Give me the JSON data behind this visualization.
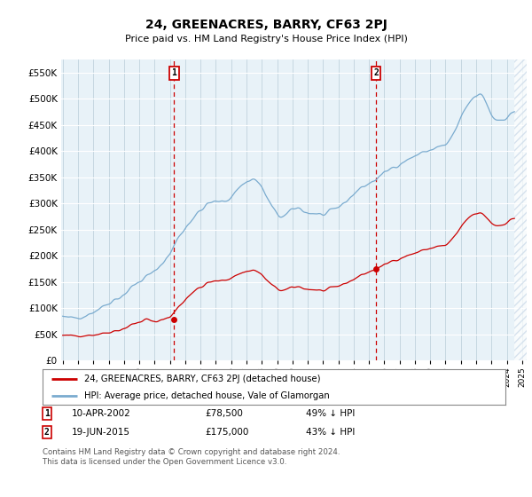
{
  "title": "24, GREENACRES, BARRY, CF63 2PJ",
  "subtitle": "Price paid vs. HM Land Registry's House Price Index (HPI)",
  "legend_line1": "24, GREENACRES, BARRY, CF63 2PJ (detached house)",
  "legend_line2": "HPI: Average price, detached house, Vale of Glamorgan",
  "annotation1_date": "10-APR-2002",
  "annotation1_price": 78500,
  "annotation1_pct": "49% ↓ HPI",
  "annotation1_year": 2002.28,
  "annotation2_date": "19-JUN-2015",
  "annotation2_price": 175000,
  "annotation2_pct": "43% ↓ HPI",
  "annotation2_year": 2015.46,
  "line1_color": "#cc0000",
  "line2_color": "#7aabcf",
  "plot_bg": "#e8f2f8",
  "fig_bg": "#ffffff",
  "grid_color": "#cccccc",
  "hatch_color": "#c8d8e8",
  "ylim": [
    0,
    575000
  ],
  "xlim_start": 1994.9,
  "xlim_end": 2025.3,
  "hatch_start": 2024.5,
  "copyright_text": "Contains HM Land Registry data © Crown copyright and database right 2024.\nThis data is licensed under the Open Government Licence v3.0."
}
